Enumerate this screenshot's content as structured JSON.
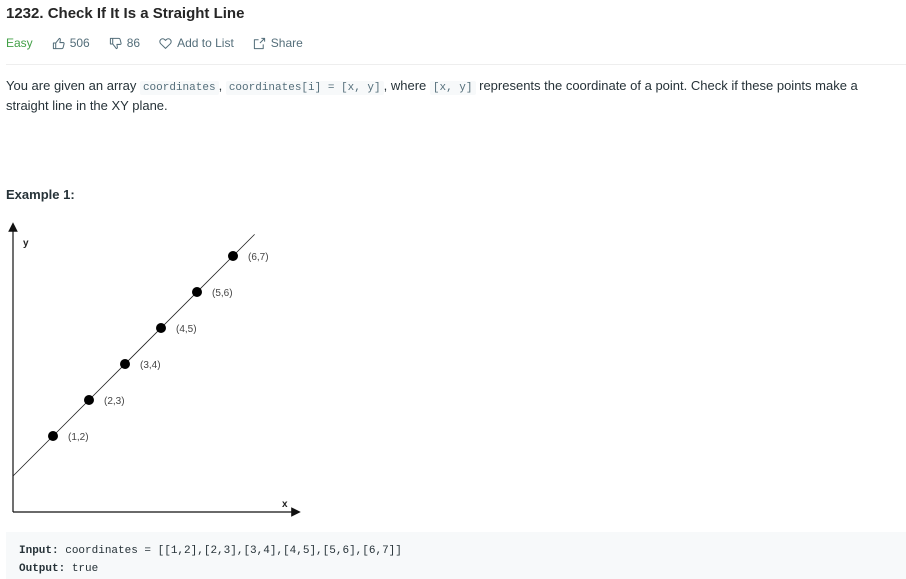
{
  "problem": {
    "title": "1232. Check If It Is a Straight Line",
    "difficulty": "Easy",
    "likes": "506",
    "dislikes": "86",
    "add_to_list": "Add to List",
    "share": "Share"
  },
  "description": {
    "p1": "You are given an array ",
    "code1": "coordinates",
    "p2": ", ",
    "code2": "coordinates[i] = [x, y]",
    "p3": ", where ",
    "code3": "[x, y]",
    "p4": " represents the coordinate of a point. Check if these points make a straight line in the XY plane."
  },
  "example": {
    "title": "Example 1:",
    "input_label": "Input:",
    "input_value": "coordinates = [[1,2],[2,3],[3,4],[4,5],[5,6],[6,7]]",
    "output_label": "Output:",
    "output_value": "true"
  },
  "colors": {
    "easy": "#43a047",
    "meta": "#546e7a",
    "code_bg": "#f7f9fa"
  },
  "chart_data": {
    "type": "scatter",
    "xlabel": "x",
    "ylabel": "y",
    "grid": false,
    "series": [
      {
        "x": [
          1,
          2,
          3,
          4,
          5,
          6
        ],
        "y": [
          2,
          3,
          4,
          5,
          6,
          7
        ],
        "point_labels": [
          "(1,2)",
          "(2,3)",
          "(3,4)",
          "(4,5)",
          "(5,6)",
          "(6,7)"
        ]
      }
    ],
    "trend_line": true
  }
}
